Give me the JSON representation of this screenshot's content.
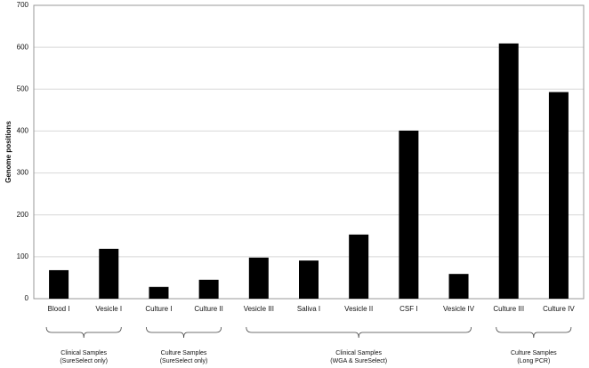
{
  "chart_data": {
    "type": "bar",
    "y_label": "Genome positions",
    "color": "#000000",
    "ylim": [
      0,
      700
    ],
    "yticks": [
      0,
      100,
      200,
      300,
      400,
      500,
      600,
      700
    ],
    "grid": true,
    "groups": [
      {
        "label": [
          "Clinical Samples",
          "(SureSelect only)"
        ],
        "categories": [
          "Blood I",
          "Vesicle I"
        ],
        "values": [
          68,
          119
        ]
      },
      {
        "label": [
          "Culture Samples",
          "(SureSelect only)"
        ],
        "categories": [
          "Culture I",
          "Culture II"
        ],
        "values": [
          28,
          45
        ]
      },
      {
        "label": [
          "Clinical Samples",
          "(WGA & SureSelect)"
        ],
        "categories": [
          "Vesicle III",
          "Saliva I",
          "Vesicle II",
          "CSF I",
          "Vesicle IV"
        ],
        "values": [
          98,
          91,
          153,
          401,
          59
        ]
      },
      {
        "label": [
          "Culture Samples",
          "(Long PCR)"
        ],
        "categories": [
          "Culture III",
          "Culture IV"
        ],
        "values": [
          609,
          493
        ]
      }
    ]
  }
}
